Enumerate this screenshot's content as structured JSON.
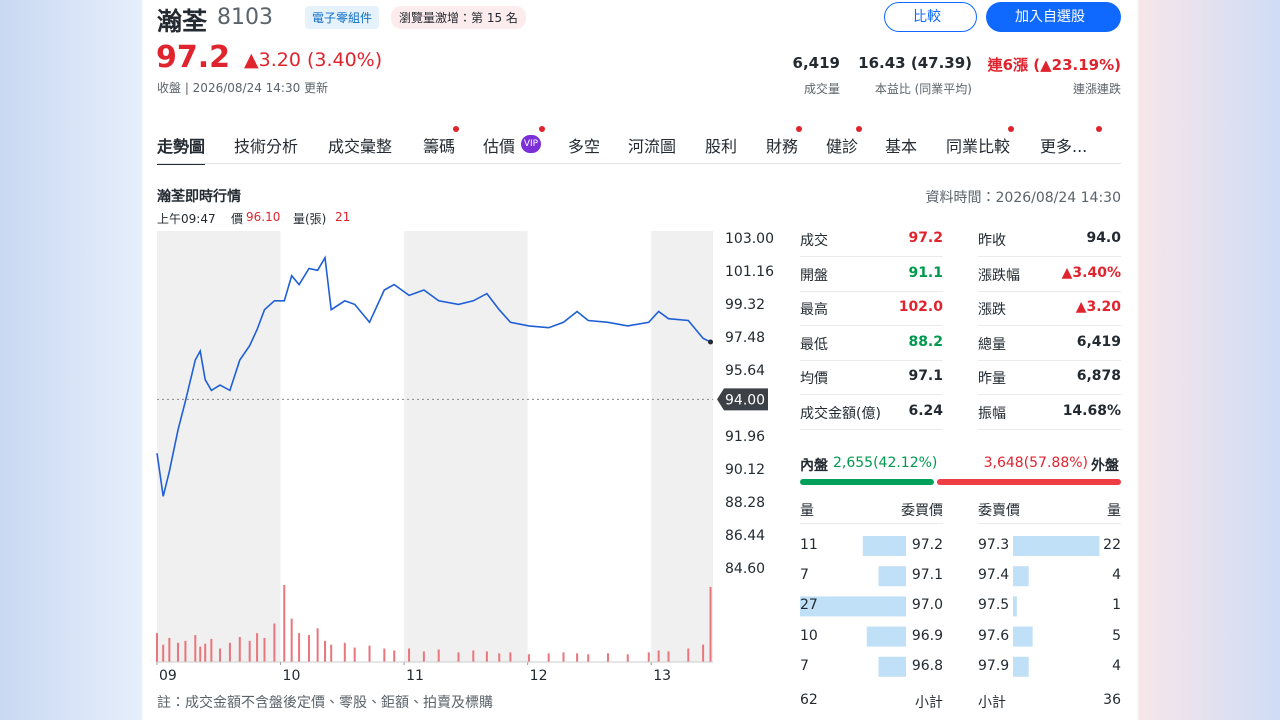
{
  "header": {
    "name": "瀚荃",
    "code": "8103",
    "tags": [
      "電子零組件",
      "瀏覽量激增：第 15 名"
    ],
    "buttons": [
      "比較",
      "加入自選股"
    ]
  },
  "quote": {
    "price": "97.2",
    "change": "▲3.20 (3.40%)",
    "status": "收盤 | 2026/08/24 14:30 更新"
  },
  "stats": [
    {
      "value": "6,419",
      "label": "成交量"
    },
    {
      "value": "16.43 (47.39)",
      "label": "本益比 (同業平均)"
    },
    {
      "value": "連6漲 (▲23.19%)",
      "label": "連漲連跌"
    }
  ],
  "tabs": [
    {
      "label": "走勢圖",
      "active": true
    },
    {
      "label": "技術分析"
    },
    {
      "label": "成交彙整"
    },
    {
      "label": "籌碼",
      "dot": true
    },
    {
      "label": "估價",
      "badge": "VIP",
      "dot": true
    },
    {
      "label": "多空"
    },
    {
      "label": "河流圖"
    },
    {
      "label": "股利"
    },
    {
      "label": "財務",
      "dot": true
    },
    {
      "label": "健診",
      "dot": true
    },
    {
      "label": "基本"
    },
    {
      "label": "同業比較",
      "dot": true
    },
    {
      "label": "更多...",
      "dot": true
    }
  ],
  "section": {
    "title": "瀚荃即時行情",
    "time": "資料時間：2026/08/24 14:30"
  },
  "hover": {
    "time": "上午09:47",
    "price_label": "價",
    "price": "96.10",
    "volume_label": "量(張)",
    "volume": "21"
  },
  "chart_data": {
    "type": "line",
    "color": "#1f5fd6",
    "x": [
      9.0,
      9.05,
      9.1,
      9.17,
      9.23,
      9.31,
      9.35,
      9.39,
      9.44,
      9.51,
      9.59,
      9.67,
      9.75,
      9.81,
      9.87,
      9.95,
      10.03,
      10.09,
      10.15,
      10.23,
      10.3,
      10.36,
      10.41,
      10.52,
      10.6,
      10.72,
      10.84,
      10.92,
      11.04,
      11.16,
      11.28,
      11.44,
      11.56,
      11.67,
      11.77,
      11.86,
      12.01,
      12.17,
      12.29,
      12.4,
      12.49,
      12.65,
      12.81,
      12.98,
      13.06,
      13.14,
      13.3,
      13.42,
      13.48
    ],
    "values": [
      91.0,
      88.6,
      90.0,
      92.3,
      93.9,
      96.2,
      96.7,
      95.1,
      94.5,
      94.8,
      94.5,
      96.2,
      97.0,
      97.9,
      99.0,
      99.5,
      99.5,
      100.9,
      100.4,
      101.3,
      101.2,
      101.9,
      99.0,
      99.5,
      99.3,
      98.3,
      100.1,
      100.4,
      99.8,
      100.1,
      99.5,
      99.3,
      99.5,
      99.9,
      99.0,
      98.3,
      98.1,
      98.0,
      98.3,
      98.9,
      98.4,
      98.3,
      98.1,
      98.3,
      98.9,
      98.5,
      98.4,
      97.4,
      97.2
    ],
    "volume": [
      30,
      18,
      25,
      20,
      22,
      28,
      16,
      19,
      24,
      14,
      20,
      26,
      22,
      30,
      25,
      40,
      80,
      45,
      30,
      28,
      35,
      22,
      18,
      20,
      15,
      17,
      14,
      12,
      14,
      11,
      13,
      10,
      12,
      11,
      9,
      10,
      8,
      9,
      10,
      9,
      8,
      9,
      8,
      10,
      12,
      11,
      14,
      18,
      78
    ],
    "volume_color": "#e8767c",
    "xlim": [
      9,
      13.5
    ],
    "xticks": [
      {
        "value": 9,
        "label": "09"
      },
      10,
      11,
      12,
      13
    ],
    "ylim": [
      84.6,
      103
    ],
    "yticks": [
      {
        "value": 103,
        "label": "103.00"
      },
      101.16,
      99.32,
      97.48,
      95.64,
      91.96,
      90.12,
      88.28,
      86.44,
      {
        "value": 84.6,
        "label": "84.60"
      }
    ],
    "reference": {
      "value": 94,
      "label": "94.00"
    }
  },
  "quote_table": [
    [
      {
        "label": "成交",
        "value": "97.2",
        "tone": "up"
      },
      {
        "label": "昨收",
        "value": "94.0"
      }
    ],
    [
      {
        "label": "開盤",
        "value": "91.1",
        "tone": "down"
      },
      {
        "label": "漲跌幅",
        "value": "▲3.40%",
        "tone": "up"
      }
    ],
    [
      {
        "label": "最高",
        "value": "102.0",
        "tone": "up"
      },
      {
        "label": "漲跌",
        "value": "▲3.20",
        "tone": "up"
      }
    ],
    [
      {
        "label": "最低",
        "value": "88.2",
        "tone": "down"
      },
      {
        "label": "總量",
        "value": "6,419"
      }
    ],
    [
      {
        "label": "均價",
        "value": "97.1"
      },
      {
        "label": "昨量",
        "value": "6,878"
      }
    ],
    [
      {
        "label": "成交金額(億)",
        "value": "6.24"
      },
      {
        "label": "振幅",
        "value": "14.68%"
      }
    ]
  ],
  "flow": {
    "inner_label": "內盤",
    "inner_text": "2,655(42.12%)",
    "inner": 2655,
    "outer_text": "3,648(57.88%)",
    "outer_label": "外盤",
    "outer": 3648
  },
  "book": {
    "headers": [
      "量",
      "委買價",
      "委賣價",
      "量"
    ],
    "bids": [
      {
        "qty": 11,
        "price": "97.2"
      },
      {
        "qty": 7,
        "price": "97.1"
      },
      {
        "qty": 27,
        "price": "97.0"
      },
      {
        "qty": 10,
        "price": "96.9"
      },
      {
        "qty": 7,
        "price": "96.8"
      }
    ],
    "asks": [
      {
        "price": "97.3",
        "qty": 22
      },
      {
        "price": "97.4",
        "qty": 4
      },
      {
        "price": "97.5",
        "qty": 1
      },
      {
        "price": "97.6",
        "qty": 5
      },
      {
        "price": "97.9",
        "qty": 4
      }
    ],
    "subtotal_label": "小計",
    "bid_total": 62,
    "ask_total": 36
  },
  "note": "註：成交金額不含盤後定價、零股、鉅額、拍賣及標購"
}
